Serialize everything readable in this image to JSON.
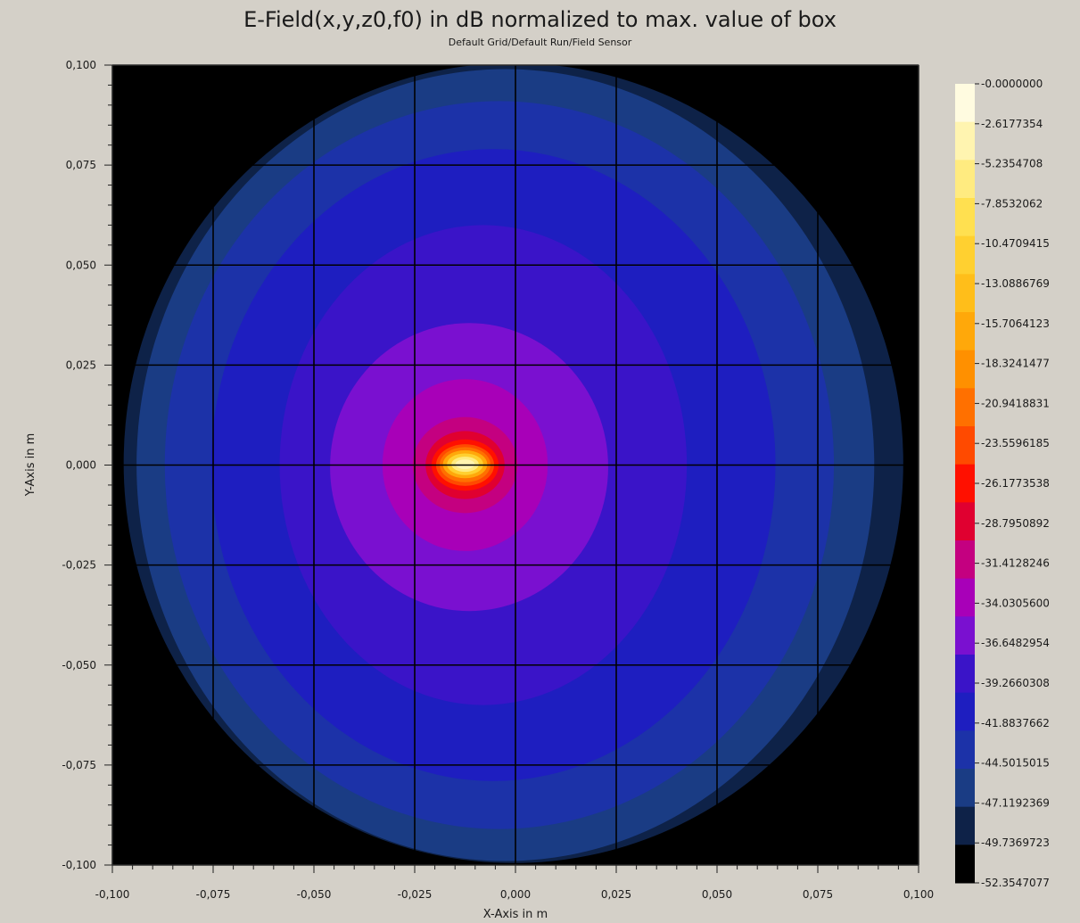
{
  "chart_data": {
    "type": "heatmap",
    "title": "E-Field(x,y,z0,f0) in dB normalized to max. value of box",
    "subtitle": "Default Grid/Default Run/Field Sensor",
    "xlabel": "X-Axis in m",
    "ylabel": "Y-Axis in m",
    "xlim": [
      -0.1,
      0.1
    ],
    "ylim": [
      -0.1,
      0.1
    ],
    "grid": true,
    "x_ticks": [
      "-0,100",
      "-0,075",
      "-0,050",
      "-0,025",
      "0,000",
      "0,025",
      "0,050",
      "0,075",
      "0,100"
    ],
    "y_ticks": [
      "0,100",
      "0,075",
      "0,050",
      "0,025",
      "0,000",
      "-0,025",
      "-0,050",
      "-0,075",
      "-0,100"
    ],
    "x_tick_values": [
      -0.1,
      -0.075,
      -0.05,
      -0.025,
      0,
      0.025,
      0.05,
      0.075,
      0.1
    ],
    "y_tick_values": [
      0.1,
      0.075,
      0.05,
      0.025,
      0,
      -0.025,
      -0.05,
      -0.075,
      -0.1
    ],
    "colorbar": {
      "labels": [
        "-0.0000000",
        "-2.6177354",
        "-5.2354708",
        "-7.8532062",
        "-10.4709415",
        "-13.0886769",
        "-15.7064123",
        "-18.3241477",
        "-20.9418831",
        "-23.5596185",
        "-26.1773538",
        "-28.7950892",
        "-31.4128246",
        "-34.0305600",
        "-36.6482954",
        "-39.2660308",
        "-41.8837662",
        "-44.5015015",
        "-47.1192369",
        "-49.7369723",
        "-52.3547077"
      ],
      "colors": [
        "#fffbe0",
        "#fff4b0",
        "#ffeb80",
        "#ffe050",
        "#ffd030",
        "#ffbe1a",
        "#ffa80a",
        "#ff9000",
        "#ff7000",
        "#ff4a00",
        "#ff1000",
        "#e00030",
        "#c40080",
        "#a800b8",
        "#7a10d0",
        "#3a14c8",
        "#1e1ec0",
        "#1c32a8",
        "#1a3c84",
        "#0e2248",
        "#000000"
      ]
    },
    "field_regions": [
      {
        "level": -49.7369723,
        "cx": -0.0005,
        "cy": 0.0005,
        "rx": 0.0967,
        "ry": 0.1
      },
      {
        "level": -47.1192369,
        "cx": -0.0025,
        "cy": 0.0,
        "rx": 0.0915,
        "ry": 0.099
      },
      {
        "level": -44.5015015,
        "cx": -0.004,
        "cy": 0.0,
        "rx": 0.083,
        "ry": 0.091
      },
      {
        "level": -41.8837662,
        "cx": -0.0055,
        "cy": 0.0,
        "rx": 0.07,
        "ry": 0.079
      },
      {
        "level": -39.2660308,
        "cx": -0.008,
        "cy": 0.0,
        "rx": 0.0505,
        "ry": 0.06
      },
      {
        "level": -36.6482954,
        "cx": -0.0115,
        "cy": -0.0005,
        "rx": 0.0345,
        "ry": 0.036
      },
      {
        "level": -34.03056,
        "cx": -0.0125,
        "cy": 0.0,
        "rx": 0.0205,
        "ry": 0.0215
      },
      {
        "level": -31.4128246,
        "cx": -0.0125,
        "cy": 0.0,
        "rx": 0.013,
        "ry": 0.012
      },
      {
        "level": -28.7950892,
        "cx": -0.0125,
        "cy": 0.0,
        "rx": 0.0098,
        "ry": 0.0085
      },
      {
        "level": -26.1773538,
        "cx": -0.0125,
        "cy": 0.0,
        "rx": 0.0083,
        "ry": 0.0064
      },
      {
        "level": -23.5596185,
        "cx": -0.0125,
        "cy": 0.0,
        "rx": 0.0072,
        "ry": 0.0052
      },
      {
        "level": -20.9418831,
        "cx": -0.0125,
        "cy": 0.0001,
        "rx": 0.0063,
        "ry": 0.0044
      },
      {
        "level": -15.7064123,
        "cx": -0.0125,
        "cy": 0.0002,
        "rx": 0.0055,
        "ry": 0.0035
      },
      {
        "level": -10.4709415,
        "cx": -0.0125,
        "cy": 0.0002,
        "rx": 0.0045,
        "ry": 0.0027
      },
      {
        "level": -5.2354708,
        "cx": -0.0125,
        "cy": 0.0002,
        "rx": 0.0034,
        "ry": 0.0019
      },
      {
        "level": -2.6177354,
        "cx": -0.0125,
        "cy": 0.0002,
        "rx": 0.0024,
        "ry": 0.0012
      }
    ]
  }
}
